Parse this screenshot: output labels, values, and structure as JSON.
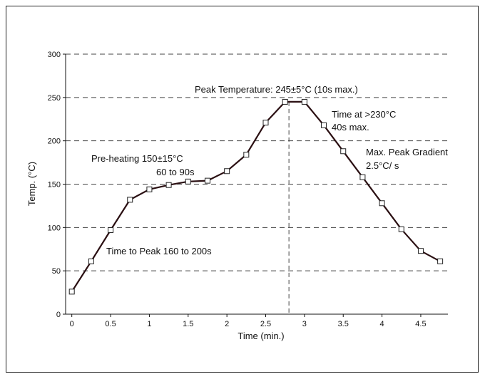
{
  "chart_data": {
    "type": "line",
    "title": "",
    "xlabel": "Time (min.)",
    "ylabel": "Temp. (°C)",
    "xlim": [
      -0.08,
      4.85
    ],
    "ylim": [
      0,
      300
    ],
    "x_ticks": [
      "0",
      "0.5",
      "1",
      "1.5",
      "2",
      "2.5",
      "3",
      "3.5",
      "4",
      "4.5"
    ],
    "y_ticks": [
      "0",
      "50",
      "100",
      "150",
      "200",
      "250",
      "300"
    ],
    "grid": "horizontal dashed",
    "series": [
      {
        "marker": "hollow-square",
        "color": "#2a0f12",
        "x": [
          0,
          0.25,
          0.5,
          0.75,
          1.0,
          1.25,
          1.5,
          1.75,
          2.0,
          2.25,
          2.5,
          2.75,
          3.0,
          3.25,
          3.5,
          3.75,
          4.0,
          4.25,
          4.5,
          4.75
        ],
        "y": [
          26,
          61,
          97,
          132,
          144,
          149,
          153,
          154,
          165,
          184,
          221,
          245,
          245,
          218,
          188,
          158,
          128,
          98,
          73,
          61
        ]
      }
    ],
    "reference_line": {
      "x": 2.8,
      "style": "dashed"
    },
    "annotations": {
      "peak_temperature": "Peak Temperature: 245±5°C (10s max.)",
      "time_above_line1": "Time at >230°C",
      "time_above_line2": "40s max.",
      "preheat_line1": "Pre-heating 150±15°C",
      "preheat_line2": "60 to 90s",
      "gradient_line1": "Max. Peak Gradient",
      "gradient_line2": "2.5°C/ s",
      "time_to_peak": "Time to Peak 160 to 200s"
    }
  }
}
